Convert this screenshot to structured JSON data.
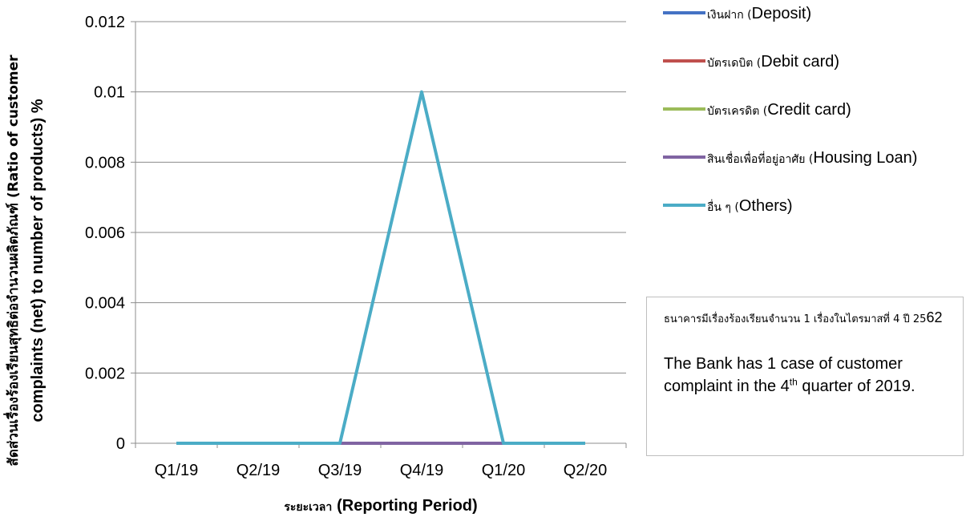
{
  "chart_data": {
    "type": "line",
    "categories": [
      "Q1/19",
      "Q2/19",
      "Q3/19",
      "Q4/19",
      "Q1/20",
      "Q2/20"
    ],
    "xlabel": "ระยะเวลา (Reporting Period)",
    "xlabel_thai": "ระยะเวลา",
    "xlabel_en": "(Reporting Period)",
    "ylabel_line1": "สัดส่วนเรื่องร้องเรียนสุทธิต่อจำนวนผลิตภัณฑ์ (Ratio of customer",
    "ylabel_line2": "complaints (net) to number of products) %",
    "ylim": [
      0,
      0.012
    ],
    "yticks": [
      "0",
      "0.002",
      "0.004",
      "0.006",
      "0.008",
      "0.01",
      "0.012"
    ],
    "ytick_values": [
      0,
      0.002,
      0.004,
      0.006,
      0.008,
      0.01,
      0.012
    ],
    "grid": "horizontal",
    "legend_position": "right",
    "series": [
      {
        "name": "เงินฝาก (Deposit)",
        "name_thai": "เงินฝาก (",
        "name_en": "Deposit)",
        "color": "#4472c4",
        "values": [
          0,
          0,
          0,
          0,
          0,
          0
        ]
      },
      {
        "name": "บัตรเดบิต (Debit card)",
        "name_thai": "บัตรเดบิต (",
        "name_en": "Debit card)",
        "color": "#c0504d",
        "values": [
          0,
          0,
          0,
          0,
          0,
          0
        ]
      },
      {
        "name": "บัตรเครดิต (Credit card)",
        "name_thai": "บัตรเครดิต (",
        "name_en": "Credit card)",
        "color": "#9bbb59",
        "values": [
          0,
          0,
          0,
          0,
          0,
          0
        ]
      },
      {
        "name": "สินเชื่อเพื่อที่อยู่อาศัย (Housing Loan)",
        "name_thai": "สินเชื่อเพื่อที่อยู่อาศัย (",
        "name_en": "Housing Loan)",
        "color": "#8064a2",
        "values": [
          0,
          0,
          0,
          0,
          0,
          0
        ]
      },
      {
        "name": "อื่น ๆ (Others)",
        "name_thai": "อื่น ๆ (",
        "name_en": "Others)",
        "color": "#4bacc6",
        "values": [
          0,
          0,
          0,
          0.01,
          0,
          0
        ]
      }
    ]
  },
  "note": {
    "thai_text": "ธนาคารมีเรื่องร้องเรียนจำนวน 1 เรื่องในไตรมาสที่ 4 ปี 25",
    "thai_year_suffix": "62",
    "en_before": "The Bank has 1 case of customer complaint in the 4",
    "en_sup": "th",
    "en_after": " quarter of 2019."
  }
}
